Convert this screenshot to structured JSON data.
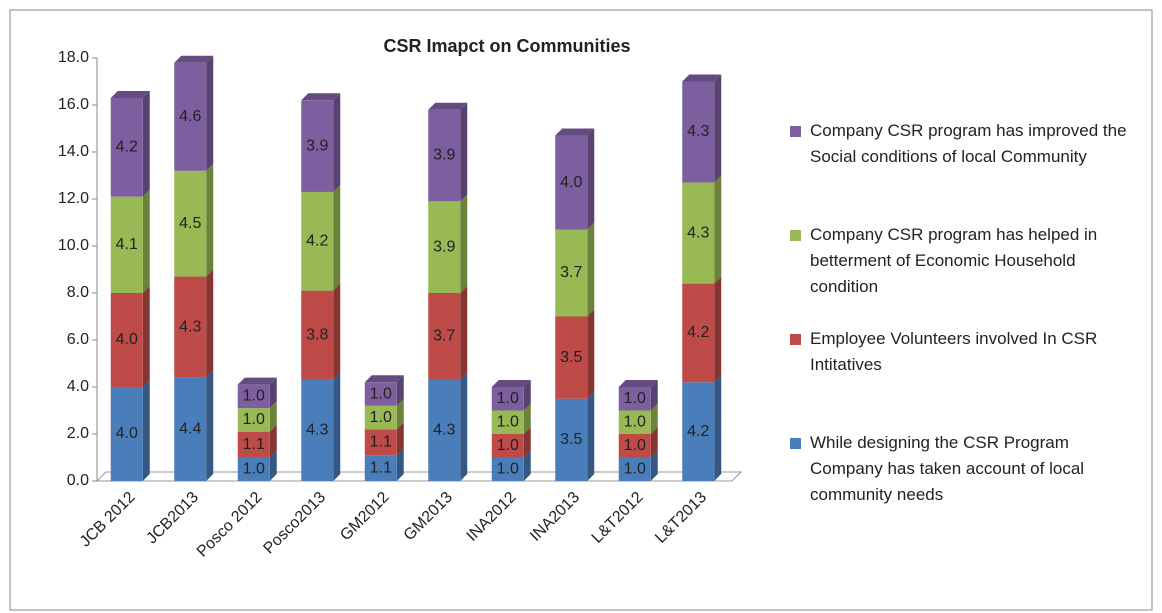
{
  "chart_data": {
    "type": "stacked-bar",
    "title": "CSR Imapct on Communities",
    "categories": [
      "JCB 2012",
      "JCB2013",
      "Posco 2012",
      "Posco2013",
      "GM2012",
      "GM2013",
      "INA2012",
      "INA2013",
      "L&T2012",
      "L&T2013"
    ],
    "series": [
      {
        "name": "While designing the CSR Program Company has  taken account of local community needs",
        "color": "#4a7ebb",
        "values": [
          4.0,
          4.4,
          1.0,
          4.3,
          1.1,
          4.3,
          1.0,
          3.5,
          1.0,
          4.2
        ],
        "value_labels": [
          "4.0",
          "4.4",
          "1.0",
          "4.3",
          "1.1",
          "4.3",
          "1.0",
          "3.5",
          "1.0",
          "4.2"
        ]
      },
      {
        "name": "Employee Volunteers involved In CSR Intitatives",
        "color": "#be4b48",
        "values": [
          4.0,
          4.3,
          1.1,
          3.8,
          1.1,
          3.7,
          1.0,
          3.5,
          1.0,
          4.2
        ],
        "value_labels": [
          "4.0",
          "4.3",
          "1.1",
          "3.8",
          "1.1",
          "3.7",
          "1.0",
          "3.5",
          "1.0",
          "4.2"
        ]
      },
      {
        "name": "Company CSR program has helped in betterment of Economic Household condition",
        "color": "#98b954",
        "values": [
          4.1,
          4.5,
          1.0,
          4.2,
          1.0,
          3.9,
          1.0,
          3.7,
          1.0,
          4.3
        ],
        "value_labels": [
          "4.1",
          "4.5",
          "1.0",
          "4.2",
          "1.0",
          "3.9",
          "1.0",
          "3.7",
          "1.0",
          "4.3"
        ]
      },
      {
        "name": "Company CSR program has improved the Social conditions of local Community",
        "color": "#7d5fa0",
        "values": [
          4.2,
          4.6,
          1.0,
          3.9,
          1.0,
          3.9,
          1.0,
          4.0,
          1.0,
          4.3
        ],
        "value_labels": [
          "4.2",
          "4.6",
          "1.0",
          "3.9",
          "1.0",
          "3.9",
          "1.0",
          "4.0",
          "1.0",
          "4.3"
        ]
      }
    ],
    "ylim": [
      0,
      18
    ],
    "yticks": [
      {
        "value": 0,
        "label": "0.0"
      },
      {
        "value": 2,
        "label": "2.0"
      },
      {
        "value": 4,
        "label": "4.0"
      },
      {
        "value": 6,
        "label": "6.0"
      },
      {
        "value": 8,
        "label": "8.0"
      },
      {
        "value": 10,
        "label": "10.0"
      },
      {
        "value": 12,
        "label": "12.0"
      },
      {
        "value": 14,
        "label": "14.0"
      },
      {
        "value": 16,
        "label": "16.0"
      },
      {
        "value": 18,
        "label": "18.0"
      }
    ],
    "legend": "right"
  }
}
